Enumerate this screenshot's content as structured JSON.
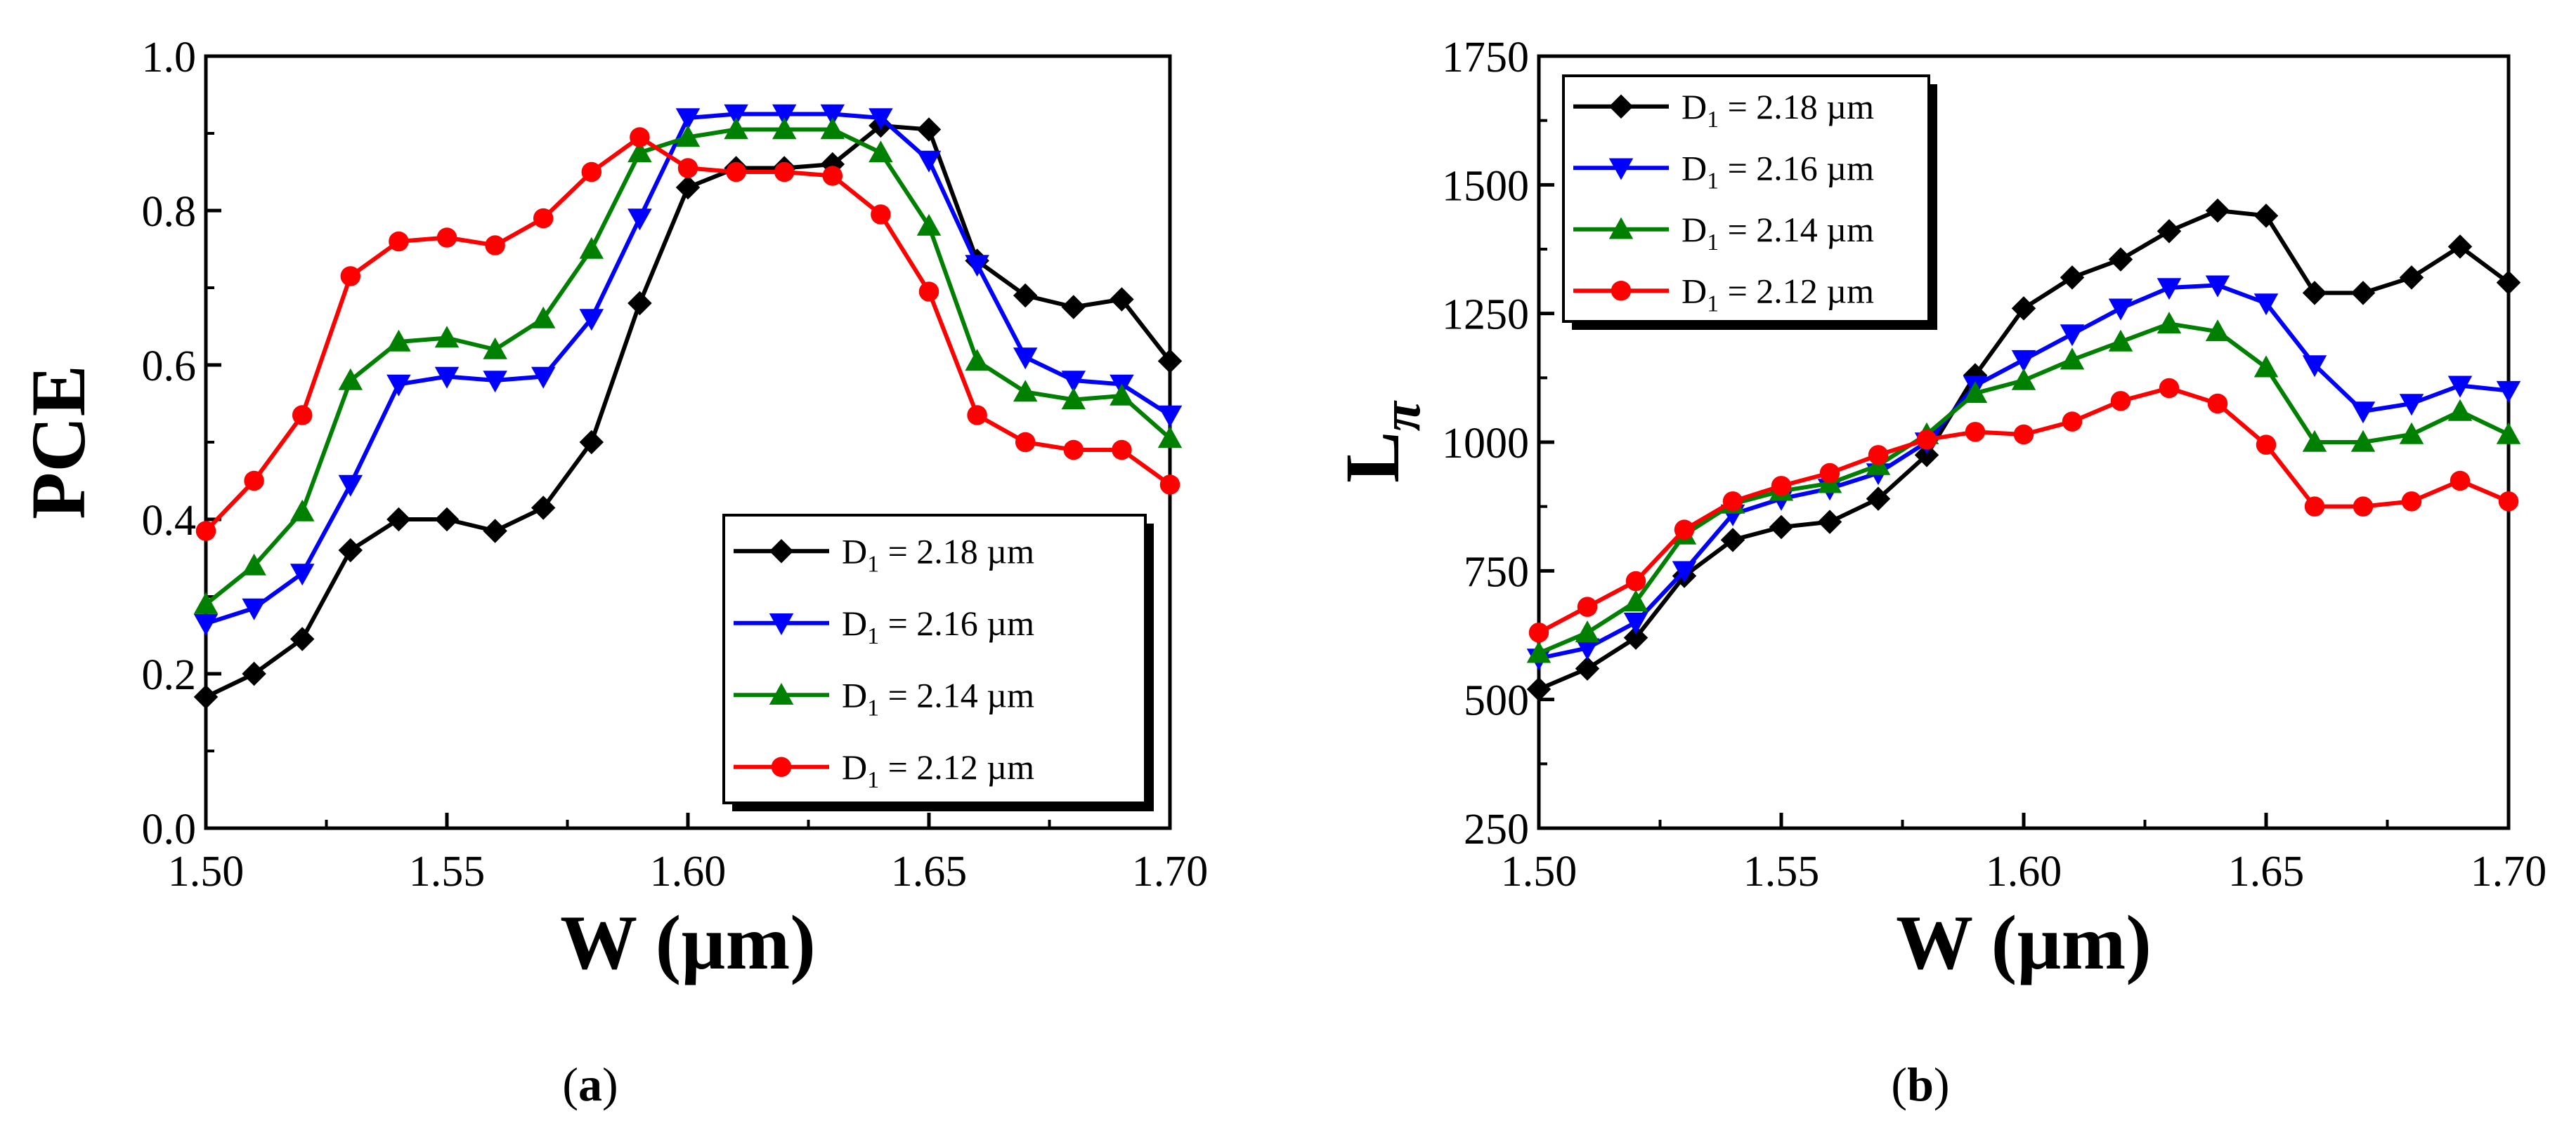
{
  "figure": {
    "captions": [
      {
        "open": "(",
        "letter": "a",
        "close": ")"
      },
      {
        "open": "(",
        "letter": "b",
        "close": ")"
      }
    ]
  },
  "chart_data": [
    {
      "id": "a",
      "type": "line",
      "title": "",
      "xlabel": "W (µm)",
      "ylabel": "PCE",
      "ylabel_sub": "",
      "xlim": [
        1.5,
        1.7
      ],
      "ylim": [
        0.0,
        1.0
      ],
      "xticks": [
        "1.50",
        "1.55",
        "1.60",
        "1.65",
        "1.70"
      ],
      "yticks": [
        "0.0",
        "0.2",
        "0.4",
        "0.6",
        "0.8",
        "1.0"
      ],
      "legend_position": "bottom-right",
      "x": [
        1.5,
        1.51,
        1.52,
        1.53,
        1.54,
        1.55,
        1.56,
        1.57,
        1.58,
        1.59,
        1.6,
        1.61,
        1.62,
        1.63,
        1.64,
        1.65,
        1.66,
        1.67,
        1.68,
        1.69,
        1.7
      ],
      "series": [
        {
          "label_main": "D",
          "label_sub": "1",
          "label_rest": " = 2.18 µm",
          "color": "#000000",
          "marker": "diamond",
          "values": [
            0.17,
            0.2,
            0.245,
            0.36,
            0.4,
            0.4,
            0.385,
            0.415,
            0.5,
            0.68,
            0.83,
            0.855,
            0.855,
            0.86,
            0.91,
            0.905,
            0.735,
            0.69,
            0.675,
            0.685,
            0.605
          ]
        },
        {
          "label_main": "D",
          "label_sub": "1",
          "label_rest": " = 2.16 µm",
          "color": "#0000ff",
          "marker": "triangle-down",
          "values": [
            0.265,
            0.285,
            0.33,
            0.445,
            0.575,
            0.585,
            0.58,
            0.585,
            0.66,
            0.79,
            0.92,
            0.925,
            0.925,
            0.925,
            0.92,
            0.865,
            0.73,
            0.61,
            0.58,
            0.575,
            0.535
          ]
        },
        {
          "label_main": "D",
          "label_sub": "1",
          "label_rest": " = 2.14 µm",
          "color": "#008000",
          "marker": "triangle-up",
          "values": [
            0.29,
            0.34,
            0.41,
            0.58,
            0.63,
            0.635,
            0.62,
            0.66,
            0.75,
            0.875,
            0.895,
            0.905,
            0.905,
            0.905,
            0.875,
            0.78,
            0.605,
            0.565,
            0.555,
            0.56,
            0.505
          ]
        },
        {
          "label_main": "D",
          "label_sub": "1",
          "label_rest": " = 2.12 µm",
          "color": "#ff0000",
          "marker": "circle",
          "values": [
            0.385,
            0.45,
            0.535,
            0.715,
            0.76,
            0.765,
            0.755,
            0.79,
            0.85,
            0.895,
            0.855,
            0.85,
            0.85,
            0.845,
            0.795,
            0.695,
            0.535,
            0.5,
            0.49,
            0.49,
            0.445
          ]
        }
      ]
    },
    {
      "id": "b",
      "type": "line",
      "title": "",
      "xlabel": "W (µm)",
      "ylabel": "L",
      "ylabel_sub": "π",
      "xlim": [
        1.5,
        1.7
      ],
      "ylim": [
        250,
        1750
      ],
      "xticks": [
        "1.50",
        "1.55",
        "1.60",
        "1.65",
        "1.70"
      ],
      "yticks": [
        "250",
        "500",
        "750",
        "1000",
        "1250",
        "1500",
        "1750"
      ],
      "legend_position": "top-left",
      "x": [
        1.5,
        1.51,
        1.52,
        1.53,
        1.54,
        1.55,
        1.56,
        1.57,
        1.58,
        1.59,
        1.6,
        1.61,
        1.62,
        1.63,
        1.64,
        1.65,
        1.66,
        1.67,
        1.68,
        1.69,
        1.7
      ],
      "series": [
        {
          "label_main": "D",
          "label_sub": "1",
          "label_rest": " = 2.18 µm",
          "color": "#000000",
          "marker": "diamond",
          "values": [
            520,
            560,
            620,
            740,
            810,
            835,
            845,
            890,
            975,
            1130,
            1260,
            1320,
            1355,
            1410,
            1450,
            1440,
            1290,
            1290,
            1320,
            1380,
            1310
          ]
        },
        {
          "label_main": "D",
          "label_sub": "1",
          "label_rest": " = 2.16 µm",
          "color": "#0000ff",
          "marker": "triangle-down",
          "values": [
            580,
            600,
            650,
            750,
            860,
            890,
            910,
            940,
            1000,
            1110,
            1160,
            1210,
            1260,
            1300,
            1305,
            1270,
            1150,
            1060,
            1075,
            1110,
            1100
          ]
        },
        {
          "label_main": "D",
          "label_sub": "1",
          "label_rest": " = 2.14 µm",
          "color": "#008000",
          "marker": "triangle-up",
          "values": [
            590,
            630,
            690,
            820,
            880,
            905,
            920,
            955,
            1015,
            1095,
            1120,
            1160,
            1195,
            1230,
            1215,
            1145,
            1000,
            1000,
            1015,
            1060,
            1015
          ]
        },
        {
          "label_main": "D",
          "label_sub": "1",
          "label_rest": " = 2.12 µm",
          "color": "#ff0000",
          "marker": "circle",
          "values": [
            630,
            680,
            730,
            830,
            885,
            915,
            940,
            975,
            1005,
            1020,
            1015,
            1040,
            1080,
            1105,
            1075,
            995,
            875,
            875,
            885,
            925,
            885
          ]
        }
      ]
    }
  ]
}
